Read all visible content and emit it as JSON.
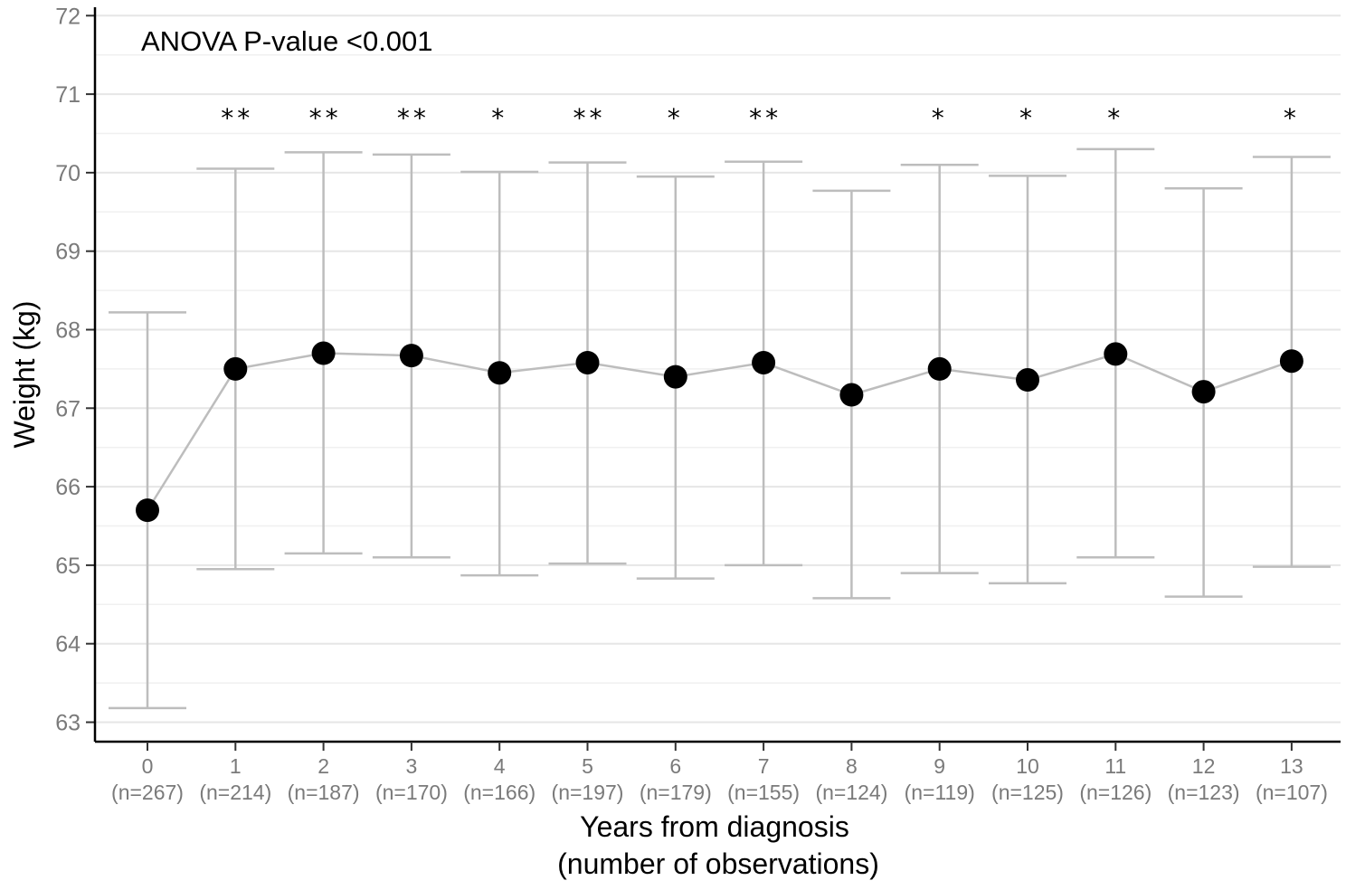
{
  "chart_data": {
    "type": "line",
    "title": "",
    "annotation": "ANOVA P-value <0.001",
    "xlabel": "Years from diagnosis",
    "xlabel_line2": "(number of observations)",
    "ylabel": "Weight (kg)",
    "ylim": [
      62.85,
      72.1
    ],
    "yticks": [
      63,
      64,
      65,
      66,
      67,
      68,
      69,
      70,
      71,
      72
    ],
    "grid": "horizontal",
    "categories": [
      "0",
      "1",
      "2",
      "3",
      "4",
      "5",
      "6",
      "7",
      "8",
      "9",
      "10",
      "11",
      "12",
      "13"
    ],
    "n_labels": [
      "(n=267)",
      "(n=214)",
      "(n=187)",
      "(n=170)",
      "(n=166)",
      "(n=197)",
      "(n=179)",
      "(n=155)",
      "(n=124)",
      "(n=119)",
      "(n=125)",
      "(n=126)",
      "(n=123)",
      "(n=107)"
    ],
    "means": [
      65.7,
      67.5,
      67.7,
      67.67,
      67.45,
      67.58,
      67.4,
      67.58,
      67.17,
      67.5,
      67.36,
      67.69,
      67.21,
      67.6
    ],
    "upper": [
      68.22,
      70.05,
      70.26,
      70.23,
      70.01,
      70.13,
      69.95,
      70.14,
      69.77,
      70.1,
      69.96,
      70.3,
      69.8,
      70.2
    ],
    "lower": [
      63.18,
      64.95,
      65.15,
      65.1,
      64.87,
      65.02,
      64.83,
      65.0,
      64.58,
      64.9,
      64.77,
      65.1,
      64.6,
      64.98
    ],
    "significance": [
      "",
      "**",
      "**",
      "**",
      "*",
      "**",
      "*",
      "**",
      "",
      "*",
      "*",
      "*",
      "",
      "*"
    ],
    "colors": {
      "points": "#000000",
      "lines": "#bdbdbd",
      "grid": "#e6e6e6",
      "tick_text": "#7a7a7a"
    }
  }
}
